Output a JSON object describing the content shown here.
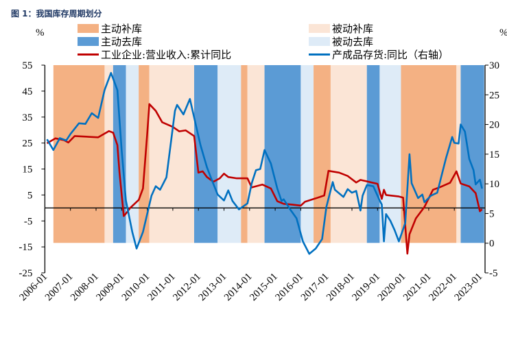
{
  "title": "图 1：我国库存周期划分",
  "colors": {
    "active_restock": "#F4B183",
    "passive_restock": "#FBE5D6",
    "active_destock": "#5B9BD5",
    "passive_destock": "#DEEBF7",
    "revenue": "#C00000",
    "inventory": "#0070C0"
  },
  "legend": {
    "active_restock": "主动补库",
    "passive_restock": "被动补库",
    "active_destock": "主动去库",
    "passive_destock": "被动去库",
    "revenue": "工业企业:营业收入:累计同比",
    "inventory": "产成品存货:同比（右轴）"
  },
  "chart_data": {
    "type": "line",
    "left_unit": "%",
    "right_unit": "%",
    "x_ticks": [
      "2006-01",
      "2007-01",
      "2008-01",
      "2009-01",
      "2010-01",
      "2011-01",
      "2012-01",
      "2013-01",
      "2014-01",
      "2015-01",
      "2016-01",
      "2017-01",
      "2018-01",
      "2019-01",
      "2020-01",
      "2021-01",
      "2022-01",
      "2023-01"
    ],
    "y_left": {
      "min": -25,
      "max": 55,
      "step": 10
    },
    "y_right": {
      "min": -5,
      "max": 30,
      "step": 5
    },
    "phases": [
      {
        "type": "active_restock",
        "start": "2006-05",
        "end": "2008-05"
      },
      {
        "type": "passive_restock",
        "start": "2008-05",
        "end": "2008-09"
      },
      {
        "type": "active_destock",
        "start": "2008-09",
        "end": "2009-03"
      },
      {
        "type": "passive_destock",
        "start": "2009-03",
        "end": "2009-09"
      },
      {
        "type": "active_restock",
        "start": "2009-09",
        "end": "2010-02"
      },
      {
        "type": "passive_restock",
        "start": "2010-02",
        "end": "2011-11"
      },
      {
        "type": "active_destock",
        "start": "2011-11",
        "end": "2012-10"
      },
      {
        "type": "passive_destock",
        "start": "2012-10",
        "end": "2013-09"
      },
      {
        "type": "active_restock",
        "start": "2013-09",
        "end": "2013-12"
      },
      {
        "type": "passive_restock",
        "start": "2013-12",
        "end": "2014-08"
      },
      {
        "type": "active_destock",
        "start": "2014-08",
        "end": "2016-01"
      },
      {
        "type": "passive_destock",
        "start": "2016-01",
        "end": "2016-07"
      },
      {
        "type": "active_restock",
        "start": "2016-07",
        "end": "2017-03"
      },
      {
        "type": "passive_restock",
        "start": "2017-03",
        "end": "2018-08"
      },
      {
        "type": "active_destock",
        "start": "2018-08",
        "end": "2019-02"
      },
      {
        "type": "passive_destock",
        "start": "2019-02",
        "end": "2019-12"
      },
      {
        "type": "active_restock",
        "start": "2019-12",
        "end": "2022-02"
      },
      {
        "type": "passive_restock",
        "start": "2022-02",
        "end": "2022-04"
      },
      {
        "type": "active_destock",
        "start": "2022-04",
        "end": "2023-03"
      }
    ],
    "series": [
      {
        "name": "工业企业:营业收入:累计同比",
        "axis": "left",
        "points": [
          [
            "2006-02",
            24.9
          ],
          [
            "2006-06",
            26.8
          ],
          [
            "2006-10",
            26.1
          ],
          [
            "2006-12",
            25.2
          ],
          [
            "2007-03",
            27.7
          ],
          [
            "2008-02",
            27.2
          ],
          [
            "2008-07",
            29.6
          ],
          [
            "2008-09",
            29.0
          ],
          [
            "2008-11",
            24.2
          ],
          [
            "2008-12",
            13.6
          ],
          [
            "2009-02",
            -3.1
          ],
          [
            "2009-03",
            -2.2
          ],
          [
            "2009-05",
            0
          ],
          [
            "2009-09",
            3.1
          ],
          [
            "2009-11",
            7.5
          ],
          [
            "2010-01",
            28.6
          ],
          [
            "2010-02",
            40.0
          ],
          [
            "2010-05",
            37.4
          ],
          [
            "2010-08",
            33
          ],
          [
            "2011-01",
            31.2
          ],
          [
            "2011-04",
            29.5
          ],
          [
            "2011-07",
            29.9
          ],
          [
            "2011-11",
            27.7
          ],
          [
            "2012-01",
            13.6
          ],
          [
            "2012-03",
            14.1
          ],
          [
            "2012-05",
            11.9
          ],
          [
            "2012-08",
            10.1
          ],
          [
            "2012-11",
            11.4
          ],
          [
            "2013-01",
            13.2
          ],
          [
            "2013-03",
            11.9
          ],
          [
            "2013-07",
            11.4
          ],
          [
            "2013-12",
            11.4
          ],
          [
            "2014-02",
            7.9
          ],
          [
            "2014-07",
            9.0
          ],
          [
            "2014-11",
            7.5
          ],
          [
            "2015-02",
            2.6
          ],
          [
            "2015-05",
            1.6
          ],
          [
            "2015-09",
            1.3
          ],
          [
            "2016-01",
            0.9
          ],
          [
            "2016-03",
            2.4
          ],
          [
            "2016-08",
            3.7
          ],
          [
            "2016-12",
            4.8
          ],
          [
            "2017-02",
            14.3
          ],
          [
            "2017-07",
            13.6
          ],
          [
            "2017-11",
            12.3
          ],
          [
            "2018-03",
            9.8
          ],
          [
            "2018-05",
            10.8
          ],
          [
            "2019-01",
            9.3
          ],
          [
            "2019-03",
            3.5
          ],
          [
            "2019-04",
            7.0
          ],
          [
            "2019-05",
            5.0
          ],
          [
            "2019-11",
            4.4
          ],
          [
            "2020-01",
            4.0
          ],
          [
            "2020-03",
            -17.6
          ],
          [
            "2020-04",
            -10.1
          ],
          [
            "2020-07",
            -4.0
          ],
          [
            "2020-11",
            0.4
          ],
          [
            "2021-03",
            7.0
          ],
          [
            "2021-06",
            7.9
          ],
          [
            "2021-11",
            9.7
          ],
          [
            "2022-02",
            14.1
          ],
          [
            "2022-04",
            9.4
          ],
          [
            "2022-08",
            8.3
          ],
          [
            "2022-11",
            5.7
          ],
          [
            "2023-01",
            -1.3
          ],
          [
            "2023-02",
            -0.5
          ]
        ]
      },
      {
        "name": "产成品存货:同比（右轴）",
        "axis": "right",
        "points": [
          [
            "2006-02",
            17.5
          ],
          [
            "2006-05",
            15.7
          ],
          [
            "2006-08",
            17.7
          ],
          [
            "2006-11",
            17.3
          ],
          [
            "2007-01",
            18.4
          ],
          [
            "2007-05",
            20.2
          ],
          [
            "2007-08",
            20.1
          ],
          [
            "2007-11",
            21.9
          ],
          [
            "2008-02",
            21.1
          ],
          [
            "2008-05",
            25.8
          ],
          [
            "2008-08",
            28.7
          ],
          [
            "2008-11",
            25.8
          ],
          [
            "2009-01",
            15.7
          ],
          [
            "2009-03",
            7.2
          ],
          [
            "2009-06",
            1.9
          ],
          [
            "2009-08",
            -0.9
          ],
          [
            "2009-11",
            1.9
          ],
          [
            "2010-03",
            8.0
          ],
          [
            "2010-05",
            9.6
          ],
          [
            "2010-07",
            9.0
          ],
          [
            "2010-10",
            11.1
          ],
          [
            "2011-02",
            22.3
          ],
          [
            "2011-03",
            23.3
          ],
          [
            "2011-06",
            21.7
          ],
          [
            "2011-09",
            24.3
          ],
          [
            "2011-12",
            19.6
          ],
          [
            "2012-02",
            16.5
          ],
          [
            "2012-05",
            12.8
          ],
          [
            "2012-07",
            10.9
          ],
          [
            "2012-10",
            8.2
          ],
          [
            "2013-01",
            7.2
          ],
          [
            "2013-03",
            8.9
          ],
          [
            "2013-05",
            7.1
          ],
          [
            "2013-08",
            5.7
          ],
          [
            "2013-12",
            6.7
          ],
          [
            "2014-02",
            10.1
          ],
          [
            "2014-04",
            12.3
          ],
          [
            "2014-06",
            12.5
          ],
          [
            "2014-08",
            15.7
          ],
          [
            "2014-11",
            13.4
          ],
          [
            "2015-02",
            9.2
          ],
          [
            "2015-04",
            7.1
          ],
          [
            "2015-05",
            7.4
          ],
          [
            "2015-08",
            5.7
          ],
          [
            "2015-11",
            4.2
          ],
          [
            "2016-02",
            0.3
          ],
          [
            "2016-05",
            -1.8
          ],
          [
            "2016-08",
            -0.9
          ],
          [
            "2016-11",
            0.7
          ],
          [
            "2017-01",
            6.1
          ],
          [
            "2017-04",
            10.3
          ],
          [
            "2017-05",
            9.0
          ],
          [
            "2017-09",
            7.8
          ],
          [
            "2017-11",
            9.1
          ],
          [
            "2018-01",
            8.5
          ],
          [
            "2018-03",
            8.8
          ],
          [
            "2018-05",
            5.5
          ],
          [
            "2018-06",
            8.0
          ],
          [
            "2018-08",
            9.8
          ],
          [
            "2018-11",
            9.6
          ],
          [
            "2019-02",
            7.2
          ],
          [
            "2019-03",
            6.5
          ],
          [
            "2019-04",
            0.3
          ],
          [
            "2019-05",
            4.9
          ],
          [
            "2019-07",
            3.8
          ],
          [
            "2019-09",
            2.2
          ],
          [
            "2019-11",
            0.3
          ],
          [
            "2020-02",
            3.4
          ],
          [
            "2020-04",
            15.0
          ],
          [
            "2020-05",
            10.1
          ],
          [
            "2020-08",
            7.6
          ],
          [
            "2020-10",
            8.2
          ],
          [
            "2020-11",
            6.9
          ],
          [
            "2021-02",
            8.0
          ],
          [
            "2021-05",
            8.5
          ],
          [
            "2021-09",
            14.2
          ],
          [
            "2021-12",
            17.9
          ],
          [
            "2022-01",
            16.9
          ],
          [
            "2022-03",
            16.8
          ],
          [
            "2022-04",
            20.0
          ],
          [
            "2022-06",
            18.8
          ],
          [
            "2022-08",
            14.2
          ],
          [
            "2022-10",
            12.3
          ],
          [
            "2022-11",
            9.9
          ],
          [
            "2023-01",
            10.7
          ],
          [
            "2023-02",
            9.2
          ]
        ]
      }
    ]
  }
}
